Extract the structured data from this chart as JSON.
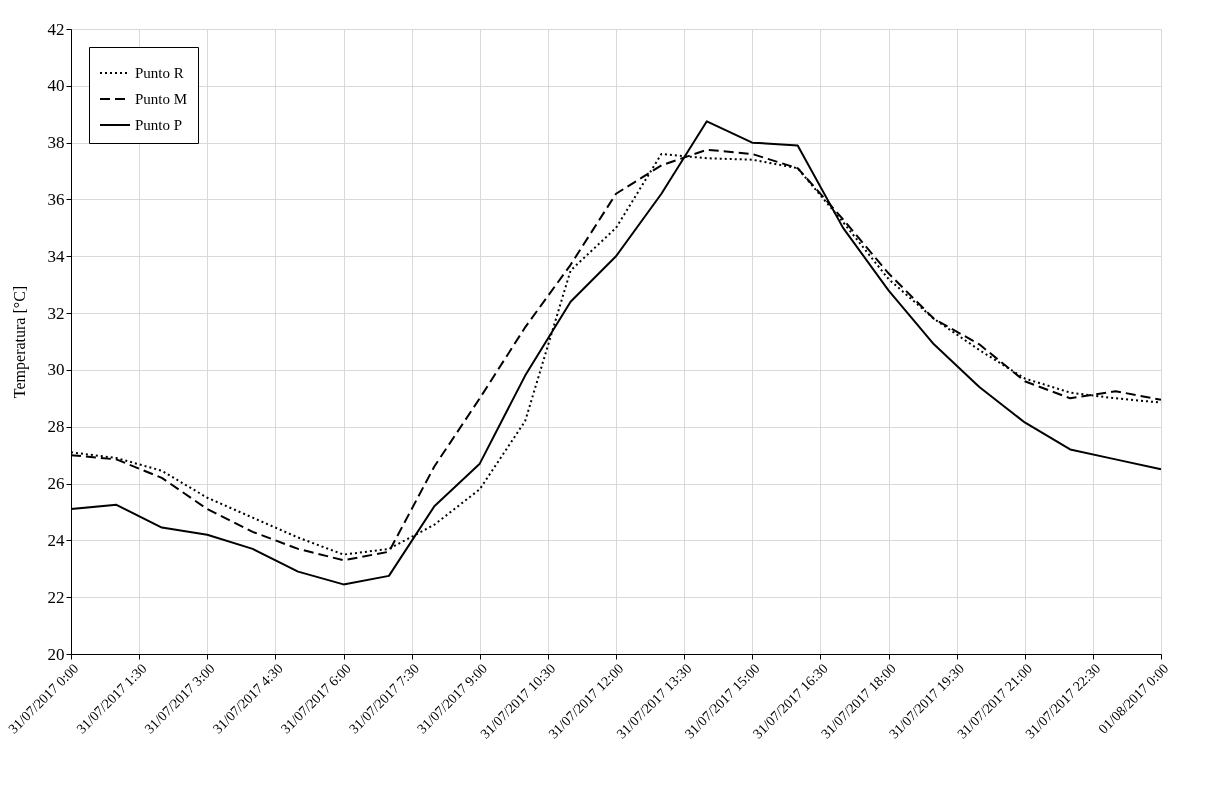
{
  "chart_data": {
    "type": "line",
    "ylabel": "Temperatura [°C]",
    "x": [
      "2017-07-31T00:00",
      "2017-07-31T01:00",
      "2017-07-31T02:00",
      "2017-07-31T03:00",
      "2017-07-31T04:00",
      "2017-07-31T05:00",
      "2017-07-31T06:00",
      "2017-07-31T07:00",
      "2017-07-31T08:00",
      "2017-07-31T09:00",
      "2017-07-31T10:00",
      "2017-07-31T11:00",
      "2017-07-31T12:00",
      "2017-07-31T13:00",
      "2017-07-31T14:00",
      "2017-07-31T15:00",
      "2017-07-31T16:00",
      "2017-07-31T17:00",
      "2017-07-31T18:00",
      "2017-07-31T19:00",
      "2017-07-31T20:00",
      "2017-07-31T21:00",
      "2017-07-31T22:00",
      "2017-07-31T23:00",
      "2017-08-01T00:00"
    ],
    "xlim": [
      "2017-07-31T00:00",
      "2017-08-01T00:00"
    ],
    "xticks": [
      {
        "value": "2017-07-31T00:00",
        "label": "31/07/2017 0:00"
      },
      {
        "value": "2017-07-31T01:30",
        "label": "31/07/2017 1:30"
      },
      {
        "value": "2017-07-31T03:00",
        "label": "31/07/2017 3:00"
      },
      {
        "value": "2017-07-31T04:30",
        "label": "31/07/2017 4:30"
      },
      {
        "value": "2017-07-31T06:00",
        "label": "31/07/2017 6:00"
      },
      {
        "value": "2017-07-31T07:30",
        "label": "31/07/2017 7:30"
      },
      {
        "value": "2017-07-31T09:00",
        "label": "31/07/2017 9:00"
      },
      {
        "value": "2017-07-31T10:30",
        "label": "31/07/2017 10:30"
      },
      {
        "value": "2017-07-31T12:00",
        "label": "31/07/2017 12:00"
      },
      {
        "value": "2017-07-31T13:30",
        "label": "31/07/2017 13:30"
      },
      {
        "value": "2017-07-31T15:00",
        "label": "31/07/2017 15:00"
      },
      {
        "value": "2017-07-31T16:30",
        "label": "31/07/2017 16:30"
      },
      {
        "value": "2017-07-31T18:00",
        "label": "31/07/2017 18:00"
      },
      {
        "value": "2017-07-31T19:30",
        "label": "31/07/2017 19:30"
      },
      {
        "value": "2017-07-31T21:00",
        "label": "31/07/2017 21:00"
      },
      {
        "value": "2017-07-31T22:30",
        "label": "31/07/2017 22:30"
      },
      {
        "value": "2017-08-01T00:00",
        "label": "01/08/2017 0:00"
      }
    ],
    "ylim": [
      20,
      42
    ],
    "yticks": [
      20,
      22,
      24,
      26,
      28,
      30,
      32,
      34,
      36,
      38,
      40,
      42
    ],
    "grid": true,
    "legend": "top left",
    "marker": "none",
    "series": [
      {
        "name": "Punto R",
        "color": "#000000",
        "line_style": "dotted",
        "values": [
          27.1,
          26.9,
          26.45,
          25.5,
          24.8,
          24.1,
          23.5,
          23.7,
          24.55,
          25.8,
          28.2,
          33.5,
          35.0,
          37.6,
          37.45,
          37.4,
          37.1,
          35.2,
          33.2,
          31.8,
          30.7,
          29.7,
          29.2,
          29.0,
          28.85
        ]
      },
      {
        "name": "Punto M",
        "color": "#000000",
        "line_style": "dashed",
        "values": [
          27.0,
          26.85,
          26.2,
          25.1,
          24.3,
          23.7,
          23.3,
          23.6,
          26.6,
          29.0,
          31.5,
          33.7,
          36.2,
          37.2,
          37.75,
          37.6,
          37.1,
          35.3,
          33.4,
          31.8,
          30.9,
          29.6,
          29.0,
          29.25,
          28.95
        ]
      },
      {
        "name": "Punto P",
        "color": "#000000",
        "line_style": "solid",
        "values": [
          25.1,
          25.25,
          24.45,
          24.2,
          23.7,
          22.9,
          22.45,
          22.75,
          25.2,
          26.7,
          29.8,
          32.4,
          34.0,
          36.2,
          38.75,
          38.0,
          37.9,
          35.0,
          32.8,
          30.9,
          29.4,
          28.15,
          27.2,
          26.85,
          26.5
        ]
      }
    ]
  }
}
